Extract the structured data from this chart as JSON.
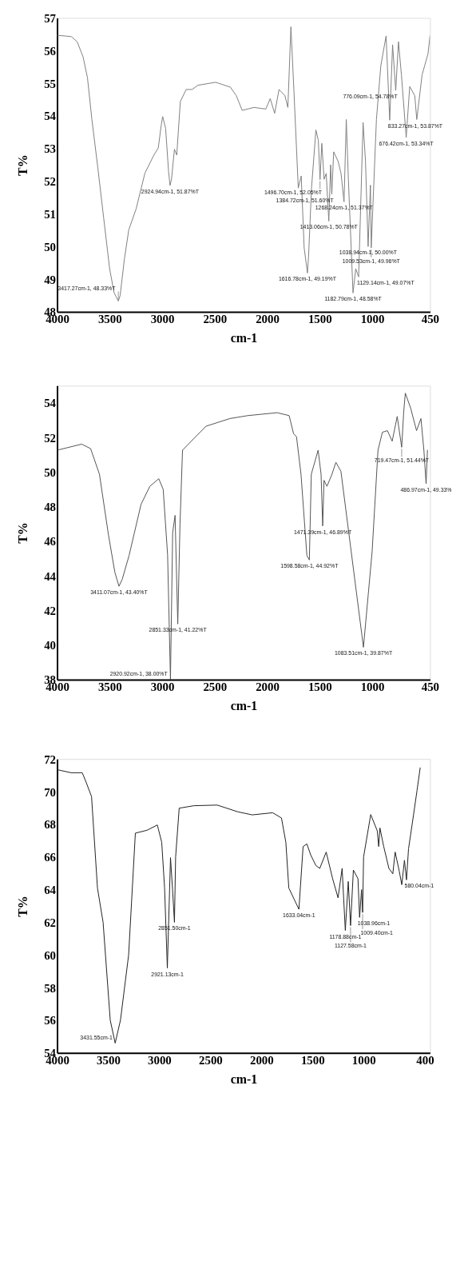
{
  "chart_data": [
    {
      "type": "line",
      "xlabel": "cm-1",
      "ylabel": "T%",
      "xlim": [
        4000,
        450
      ],
      "ylim": [
        48,
        57
      ],
      "xticks": [
        4000,
        3500,
        3000,
        2500,
        2000,
        1500,
        1000,
        450
      ],
      "yticks": [
        48,
        49,
        50,
        51,
        52,
        53,
        54,
        55,
        56,
        57
      ],
      "series": [
        {
          "color": "#808080",
          "x": [
            4000,
            3865,
            3809,
            3753,
            3711,
            3669,
            3613,
            3557,
            3500,
            3458,
            3436,
            3417.27,
            3400,
            3360,
            3318,
            3248,
            3164,
            3079,
            3037,
            3009,
            2995,
            2967,
            2939,
            2924.94,
            2911,
            2883,
            2861,
            2827,
            2771,
            2715,
            2659,
            2490,
            2350,
            2294,
            2238,
            2126,
            2013,
            1971,
            1929,
            1887,
            1831,
            1803,
            1774,
            1746,
            1704,
            1676,
            1648,
            1616.78,
            1606,
            1578,
            1536,
            1513,
            1496.7,
            1480,
            1458,
            1438,
            1413.06,
            1396,
            1384.72,
            1367,
            1325,
            1297,
            1268.24,
            1247,
            1227,
            1182.79,
            1157,
            1129.14,
            1087,
            1064,
            1038.94,
            1017,
            1009.53,
            960,
            918,
            868,
            833.27,
            806,
            776.09,
            750,
            722,
            676.42,
            643,
            595,
            576,
            525,
            469,
            450
          ],
          "values": [
            56.47,
            56.43,
            56.27,
            55.81,
            55.17,
            53.89,
            52.43,
            50.88,
            49.32,
            48.59,
            48.45,
            48.33,
            48.5,
            49.6,
            50.51,
            51.15,
            52.25,
            52.8,
            53.02,
            53.71,
            53.98,
            53.62,
            52.3,
            51.87,
            52.06,
            52.98,
            52.8,
            54.44,
            54.81,
            54.81,
            54.94,
            55.03,
            54.88,
            54.62,
            54.17,
            54.26,
            54.21,
            54.53,
            54.08,
            54.81,
            54.62,
            54.26,
            56.73,
            54.81,
            51.79,
            52.16,
            49.96,
            49.19,
            49.69,
            51.79,
            53.57,
            53.25,
            52.05,
            53.16,
            52.06,
            52.24,
            50.78,
            52.5,
            51.6,
            52.9,
            52.61,
            52.24,
            51.37,
            53.89,
            52.06,
            48.58,
            49.32,
            49.07,
            53.8,
            52.61,
            50.0,
            51.88,
            49.96,
            53.89,
            55.54,
            56.45,
            53.87,
            56.18,
            54.78,
            56.27,
            55.26,
            53.34,
            54.9,
            54.62,
            53.89,
            55.26,
            55.9,
            56.45
          ]
        }
      ],
      "annotations": [
        {
          "text": "3417.27cm-1, 48.33%T",
          "x": 3417.27,
          "y": 48.33
        },
        {
          "text": "2924.94cm-1, 51.87%T",
          "x": 2924.94,
          "y": 51.87
        },
        {
          "text": "1616.78cm-1, 49.19%T",
          "x": 1616.78,
          "y": 49.19
        },
        {
          "text": "1496.70cm-1, 52.05%T",
          "x": 1496.7,
          "y": 52.05
        },
        {
          "text": "1413.06cm-1, 50.78%T",
          "x": 1413.06,
          "y": 50.78
        },
        {
          "text": "1384.72cm-1, 51.60%T",
          "x": 1384.72,
          "y": 51.6
        },
        {
          "text": "1268.24cm-1, 51.37%T",
          "x": 1268.24,
          "y": 51.37
        },
        {
          "text": "1182.79cm-1, 48.58%T",
          "x": 1182.79,
          "y": 48.58
        },
        {
          "text": "1129.14cm-1, 49.07%T",
          "x": 1129.14,
          "y": 49.07
        },
        {
          "text": "1038.94cm-1, 50.00%T",
          "x": 1038.94,
          "y": 50.0
        },
        {
          "text": "1009.53cm-1, 49.96%T",
          "x": 1009.53,
          "y": 49.96
        },
        {
          "text": "833.27cm-1, 53.87%T",
          "x": 833.27,
          "y": 53.87
        },
        {
          "text": "776.09cm-1, 54.78%T",
          "x": 776.09,
          "y": 54.78
        },
        {
          "text": "676.42cm-1, 53.34%T",
          "x": 676.42,
          "y": 53.34
        }
      ]
    },
    {
      "type": "line",
      "xlabel": "cm-1",
      "ylabel": "T%",
      "xlim": [
        4000,
        450
      ],
      "ylim": [
        38,
        55
      ],
      "xticks": [
        4000,
        3500,
        3000,
        2500,
        2000,
        1500,
        1000,
        450
      ],
      "yticks": [
        38,
        40,
        42,
        44,
        46,
        48,
        50,
        52,
        54
      ],
      "series": [
        {
          "color": "#555555",
          "x": [
            4000,
            3766,
            3681,
            3597,
            3512,
            3450,
            3411.07,
            3380,
            3314,
            3201,
            3117,
            3032,
            2990,
            2948,
            2920.92,
            2900,
            2877,
            2851.33,
            2830,
            2806,
            2694,
            2581,
            2355,
            2186,
            1904,
            1791,
            1749,
            1721,
            1678,
            1622,
            1598.58,
            1580,
            1515,
            1487,
            1471.39,
            1459,
            1431,
            1383,
            1346,
            1298,
            1200,
            1083.51,
            1001,
            945,
            903,
            855,
            810,
            762,
            719.47,
            700,
            685,
            634,
            578,
            536,
            508,
            486.97,
            474
          ],
          "values": [
            51.27,
            51.62,
            51.36,
            49.88,
            46.4,
            44.2,
            43.4,
            43.8,
            45.2,
            48.14,
            49.18,
            49.62,
            49.0,
            45.2,
            38.0,
            46.5,
            47.5,
            41.22,
            47.0,
            51.27,
            51.97,
            52.66,
            53.1,
            53.27,
            53.44,
            53.27,
            52.23,
            52.05,
            49.88,
            45.18,
            44.92,
            49.88,
            51.27,
            49.88,
            46.89,
            49.53,
            49.18,
            49.88,
            50.57,
            50.05,
            45.4,
            39.87,
            45.4,
            51.27,
            52.31,
            52.4,
            51.79,
            53.22,
            51.44,
            53.5,
            54.57,
            53.7,
            52.4,
            53.1,
            51.27,
            49.33,
            51.27
          ]
        }
      ],
      "annotations": [
        {
          "text": "3411.07cm-1, 43.40%T",
          "x": 3411.07,
          "y": 43.4
        },
        {
          "text": "2920.92cm-1, 38.00%T",
          "x": 2920.92,
          "y": 38.0
        },
        {
          "text": "2851.33cm-1, 41.22%T",
          "x": 2851.33,
          "y": 41.22
        },
        {
          "text": "1598.58cm-1, 44.92%T",
          "x": 1598.58,
          "y": 44.92
        },
        {
          "text": "1471.39cm-1, 46.89%T",
          "x": 1471.39,
          "y": 46.89
        },
        {
          "text": "1083.51cm-1, 39.87%T",
          "x": 1083.51,
          "y": 39.87
        },
        {
          "text": "719.47cm-1, 51.44%T",
          "x": 719.47,
          "y": 51.44
        },
        {
          "text": "486.97cm-1, 49.33%",
          "x": 486.97,
          "y": 49.33
        }
      ]
    },
    {
      "type": "line",
      "xlabel": "cm-1",
      "ylabel": "T%",
      "xlim": [
        4000,
        350
      ],
      "ylim": [
        54,
        72
      ],
      "xticks": [
        4000,
        3500,
        3000,
        2500,
        2000,
        1500,
        1000,
        400
      ],
      "yticks": [
        54,
        56,
        58,
        60,
        62,
        64,
        66,
        68,
        70,
        72
      ],
      "series": [
        {
          "color": "#222222",
          "x": [
            4000,
            3863,
            3754,
            3720,
            3663,
            3605,
            3550,
            3480,
            3431.55,
            3380,
            3300,
            3234,
            3119,
            3019,
            2976,
            2948,
            2921.13,
            2890,
            2870,
            2851.5,
            2840,
            2805,
            2662,
            2433,
            2233,
            2090,
            1890,
            1804,
            1761,
            1732,
            1633.04,
            1592,
            1555,
            1518,
            1467,
            1429,
            1366,
            1303,
            1250,
            1210,
            1178.88,
            1150,
            1127.58,
            1100,
            1055,
            1038.96,
            1020,
            1009.4,
            1000,
            930,
            866,
            852,
            840,
            803,
            752,
            714,
            691,
            651,
            626,
            600,
            580.04,
            560,
            526,
            477,
            446
          ],
          "values": [
            71.35,
            71.16,
            71.16,
            70.64,
            69.7,
            64.1,
            62.0,
            56.0,
            54.6,
            56.0,
            60.0,
            67.46,
            67.64,
            67.96,
            66.9,
            64.1,
            59.2,
            65.96,
            64.0,
            62.0,
            66.0,
            68.99,
            69.14,
            69.18,
            68.77,
            68.58,
            68.71,
            68.39,
            66.9,
            64.1,
            62.8,
            66.64,
            66.8,
            66.13,
            65.48,
            65.3,
            66.3,
            64.67,
            63.5,
            65.3,
            61.5,
            64.5,
            61.8,
            65.2,
            64.67,
            62.3,
            64.0,
            62.6,
            66.0,
            68.6,
            67.6,
            66.64,
            67.78,
            66.64,
            65.3,
            64.97,
            66.3,
            65.14,
            64.3,
            65.8,
            64.6,
            66.5,
            67.94,
            70.07,
            71.46
          ]
        }
      ],
      "annotations": [
        {
          "text": "3431.55cm-1",
          "x": 3431.55,
          "y": 54.6
        },
        {
          "text": "2921.13cm-1",
          "x": 2921.13,
          "y": 59.2
        },
        {
          "text": "2851.50cm-1",
          "x": 2851.5,
          "y": 62.0
        },
        {
          "text": "1633.04cm-1",
          "x": 1633.04,
          "y": 62.8
        },
        {
          "text": "1178.88cm-1",
          "x": 1178.88,
          "y": 61.5
        },
        {
          "text": "1127.58cm-1",
          "x": 1127.58,
          "y": 61.8
        },
        {
          "text": "1038.96cm-1",
          "x": 1038.96,
          "y": 62.3
        },
        {
          "text": "1009.40cm-1",
          "x": 1009.4,
          "y": 62.6
        },
        {
          "text": "580.04cm-1",
          "x": 580.04,
          "y": 64.6
        }
      ]
    }
  ]
}
